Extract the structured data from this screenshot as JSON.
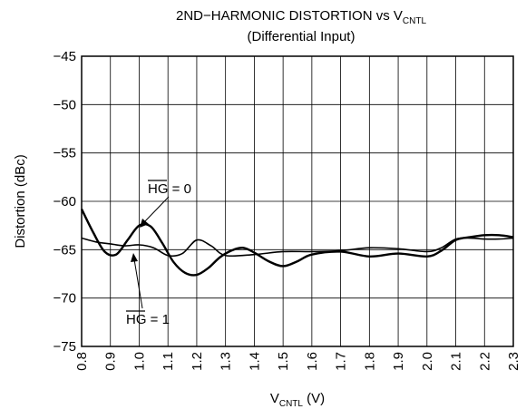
{
  "chart_data": {
    "type": "line",
    "title_main": "2ND−HARMONIC DISTORTION vs V",
    "title_sub": "CNTL",
    "subtitle": "(Differential Input)",
    "ylabel": "Distortion (dBc)",
    "xlabel_main": "V",
    "xlabel_sub": "CNTL",
    "xlabel_unit": " (V)",
    "xlim": [
      0.8,
      2.3
    ],
    "ylim": [
      -75,
      -45
    ],
    "grid": true,
    "x_ticks": [
      "0.8",
      "0.9",
      "1.0",
      "1.1",
      "1.2",
      "1.3",
      "1.4",
      "1.5",
      "1.6",
      "1.7",
      "1.8",
      "1.9",
      "2.0",
      "2.1",
      "2.2",
      "2.3"
    ],
    "y_ticks": [
      "−45",
      "−50",
      "−55",
      "−60",
      "−65",
      "−70",
      "−75"
    ],
    "series": [
      {
        "label_prefix": "HG",
        "label_suffix": " = 0",
        "x": [
          0.8,
          0.84,
          0.88,
          0.92,
          0.96,
          1.0,
          1.04,
          1.08,
          1.12,
          1.16,
          1.2,
          1.24,
          1.28,
          1.32,
          1.36,
          1.4,
          1.45,
          1.5,
          1.55,
          1.6,
          1.7,
          1.8,
          1.9,
          2.0,
          2.05,
          2.1,
          2.15,
          2.2,
          2.25,
          2.3
        ],
        "y": [
          -60.8,
          -63.2,
          -65.2,
          -65.5,
          -64.0,
          -62.5,
          -62.6,
          -64.3,
          -66.3,
          -67.4,
          -67.6,
          -66.9,
          -65.8,
          -65.1,
          -64.8,
          -65.3,
          -66.2,
          -66.7,
          -66.2,
          -65.5,
          -65.2,
          -65.7,
          -65.4,
          -65.7,
          -65.1,
          -64.0,
          -63.7,
          -63.5,
          -63.5,
          -63.7
        ]
      },
      {
        "label_prefix": "HG",
        "label_suffix": " = 1",
        "x": [
          0.8,
          0.85,
          0.9,
          0.95,
          1.0,
          1.05,
          1.1,
          1.15,
          1.2,
          1.25,
          1.3,
          1.4,
          1.5,
          1.6,
          1.7,
          1.8,
          1.9,
          2.0,
          2.05,
          2.1,
          2.15,
          2.2,
          2.25,
          2.3
        ],
        "y": [
          -63.8,
          -64.2,
          -64.4,
          -64.6,
          -64.5,
          -64.8,
          -65.6,
          -65.4,
          -64.0,
          -64.6,
          -65.6,
          -65.5,
          -65.2,
          -65.2,
          -65.1,
          -64.8,
          -64.9,
          -65.2,
          -64.8,
          -63.9,
          -63.8,
          -63.9,
          -63.9,
          -63.8
        ]
      }
    ]
  }
}
